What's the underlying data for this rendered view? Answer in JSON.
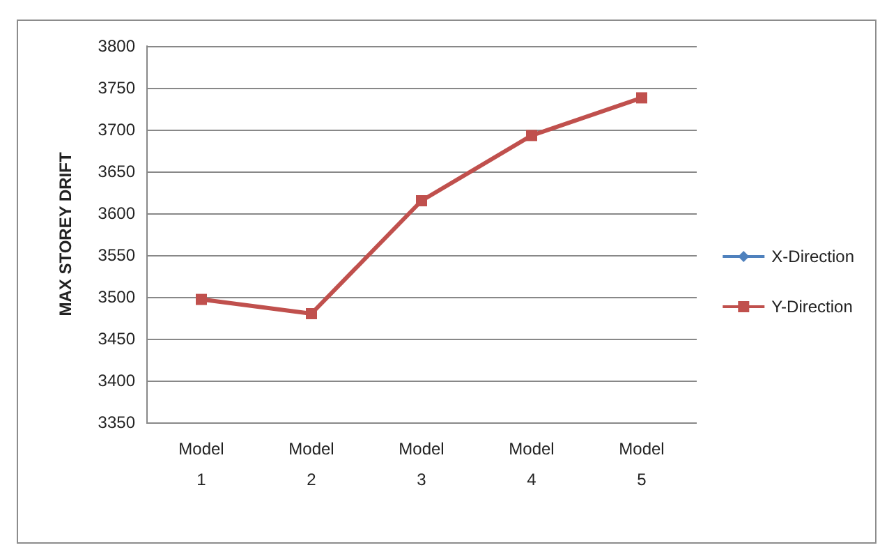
{
  "chart_data": {
    "type": "line",
    "ylabel": "MAX STOREY DRIFT",
    "categories": [
      "Model\n1",
      "Model\n2",
      "Model\n3",
      "Model\n4",
      "Model\n5"
    ],
    "series": [
      {
        "name": "X-Direction",
        "color": "#4f81bd",
        "marker": "diamond",
        "values": [
          null,
          null,
          null,
          null,
          null
        ]
      },
      {
        "name": "Y-Direction",
        "color": "#c0504d",
        "marker": "square",
        "values": [
          3497,
          3480,
          3615,
          3693,
          3738
        ]
      }
    ],
    "ylim": [
      3350,
      3800
    ],
    "yticks": [
      3350,
      3400,
      3450,
      3500,
      3550,
      3600,
      3650,
      3700,
      3750,
      3800
    ],
    "grid": "y",
    "legend": "right"
  }
}
